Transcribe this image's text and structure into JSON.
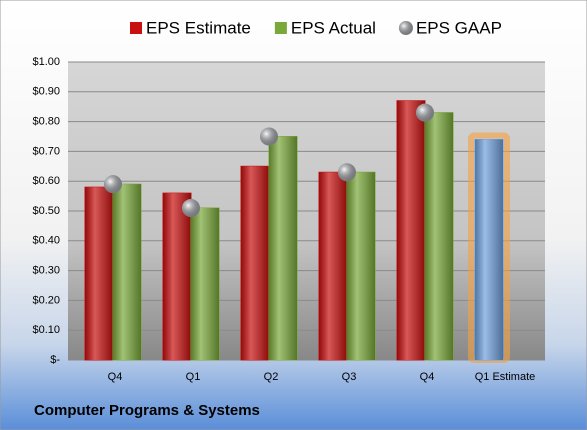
{
  "chart_data": {
    "type": "bar",
    "title": "Computer Programs & Systems",
    "categories": [
      "Q4",
      "Q1",
      "Q2",
      "Q3",
      "Q4",
      "Q1 Estimate"
    ],
    "series": [
      {
        "name": "EPS Estimate",
        "color": "#c81010",
        "values": [
          0.58,
          0.56,
          0.65,
          0.63,
          0.87,
          0.74
        ]
      },
      {
        "name": "EPS Actual",
        "color": "#7aa83a",
        "values": [
          0.59,
          0.51,
          0.75,
          0.63,
          0.83,
          null
        ]
      },
      {
        "name": "EPS GAAP",
        "color": "#b8bcc4",
        "marker": "sphere",
        "values": [
          0.59,
          0.51,
          0.75,
          0.63,
          0.83,
          null
        ]
      }
    ],
    "highlight": {
      "series": 0,
      "index": 5,
      "color": "#6fa0dc",
      "glow": "#f5a040"
    },
    "ylim": [
      0,
      1
    ],
    "yticks": [
      {
        "value": 0,
        "label": "$-"
      },
      {
        "value": 0.1,
        "label": "$0.10"
      },
      {
        "value": 0.2,
        "label": "$0.20"
      },
      {
        "value": 0.3,
        "label": "$0.30"
      },
      {
        "value": 0.4,
        "label": "$0.40"
      },
      {
        "value": 0.5,
        "label": "$0.50"
      },
      {
        "value": 0.6,
        "label": "$0.60"
      },
      {
        "value": 0.7,
        "label": "$0.70"
      },
      {
        "value": 0.8,
        "label": "$0.80"
      },
      {
        "value": 0.9,
        "label": "$0.90"
      },
      {
        "value": 1,
        "label": "$1.00"
      }
    ],
    "grid": true,
    "legend": "top"
  }
}
